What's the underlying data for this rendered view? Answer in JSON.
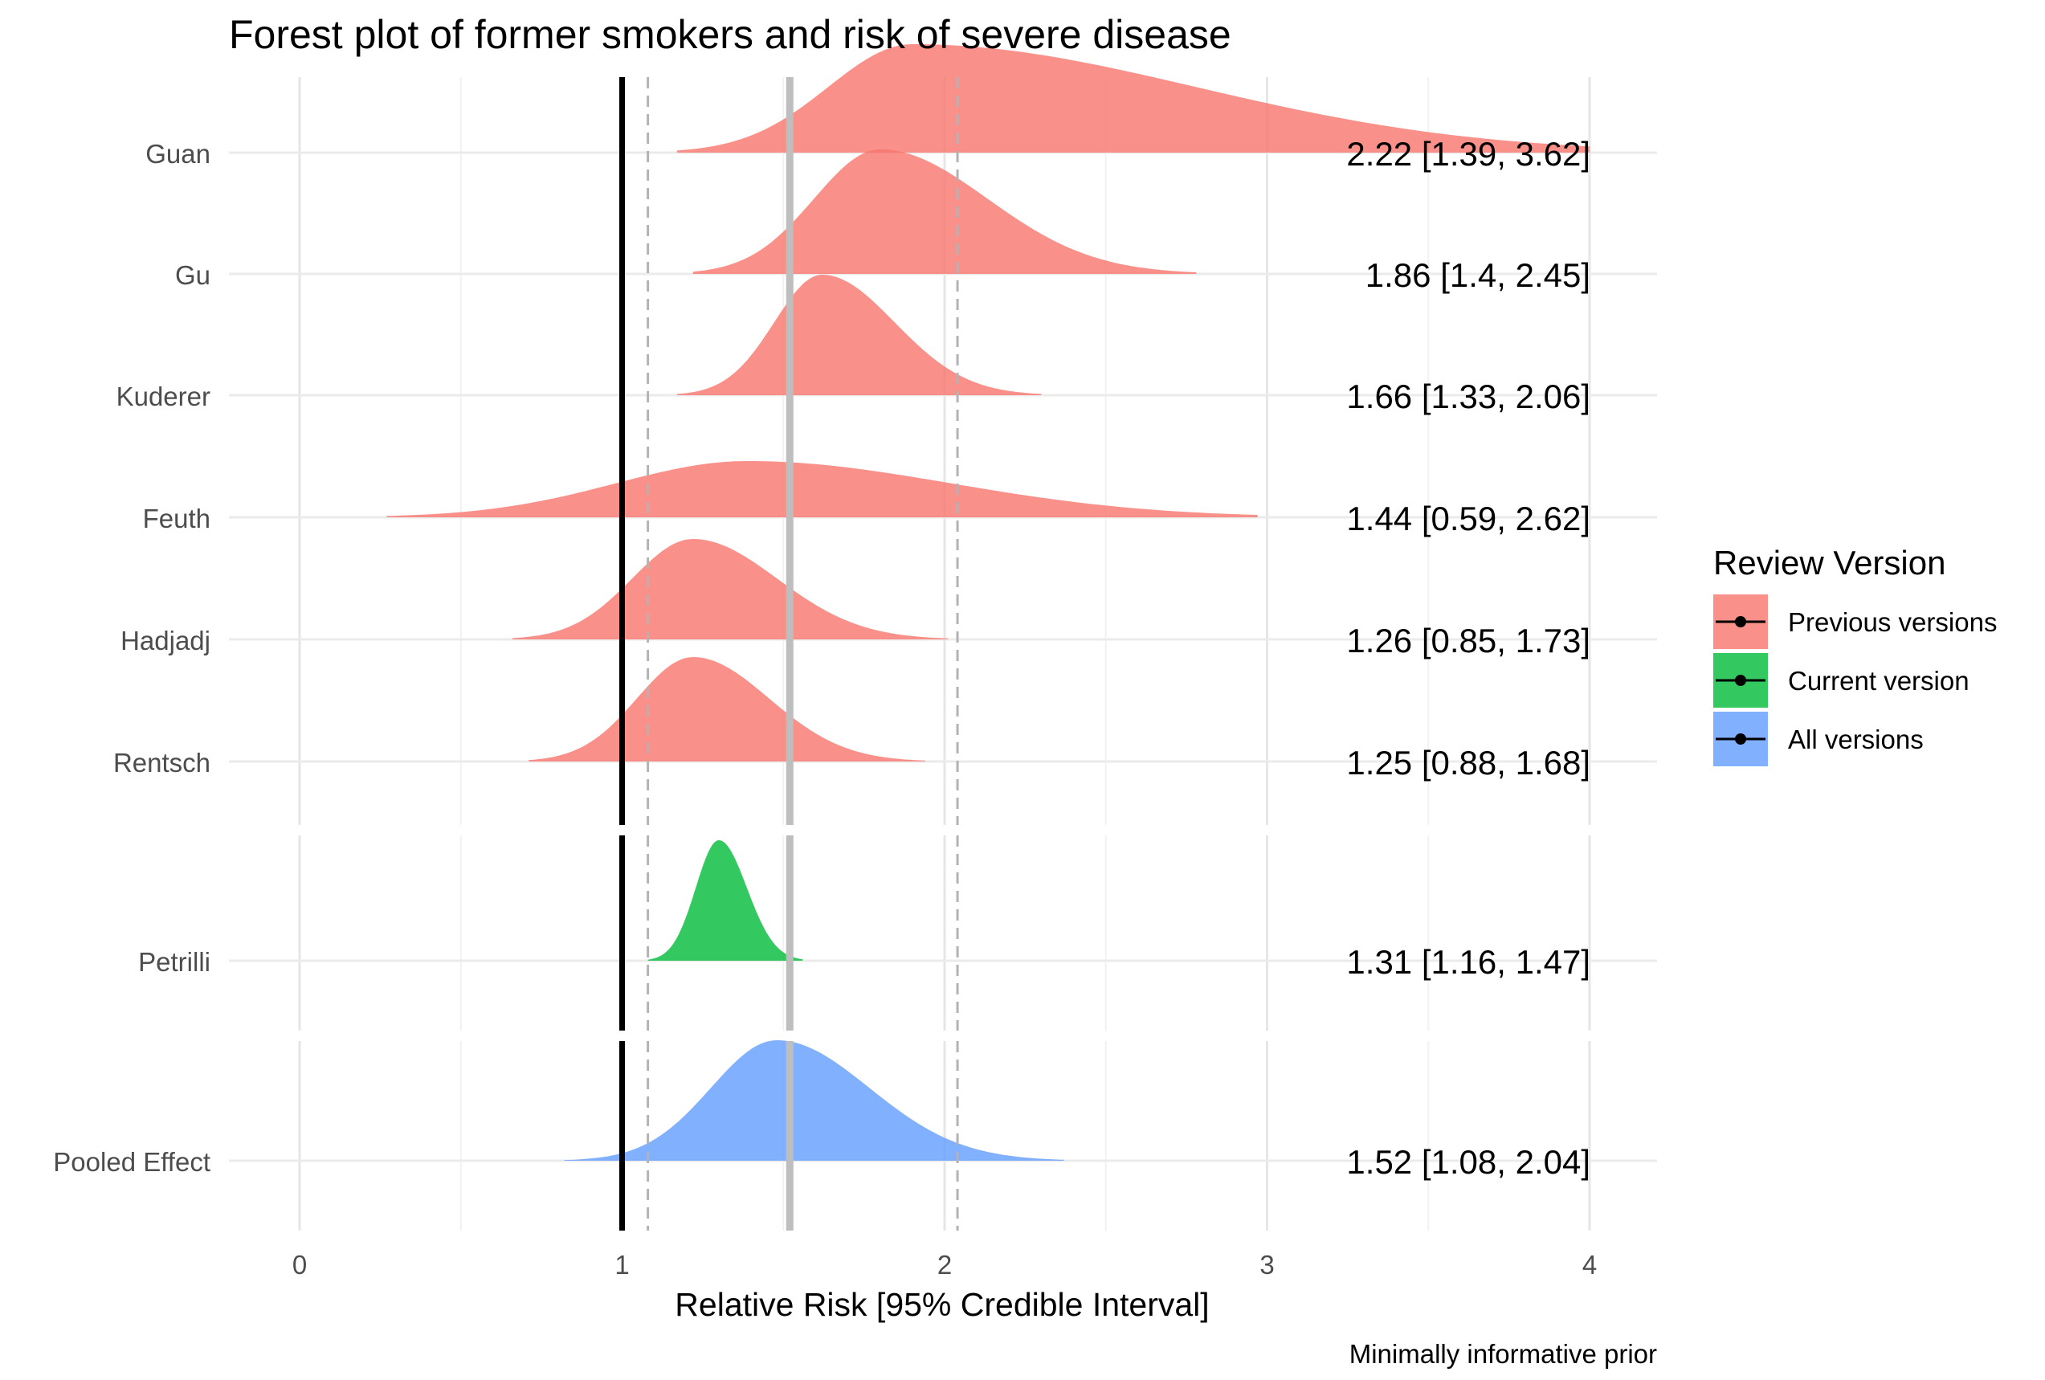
{
  "chart_data": {
    "type": "ridgeline-forest",
    "title": "Forest plot of former smokers and risk of severe disease",
    "xlabel": "Relative Risk [95% Credible Interval]",
    "caption": "Minimally informative prior",
    "xlim": [
      -0.2,
      4.2
    ],
    "x_ticks": [
      0,
      1,
      2,
      3,
      4
    ],
    "x_tick_labels": [
      "0",
      "1",
      "2",
      "3",
      "4"
    ],
    "grid": true,
    "legend": {
      "title": "Review Version",
      "placement": "right",
      "entries": [
        {
          "label": "Previous versions",
          "color": "#F8766D"
        },
        {
          "label": "Current version",
          "color": "#00BA38"
        },
        {
          "label": "All versions",
          "color": "#619CFF"
        }
      ]
    },
    "reference_lines": {
      "null_effect": 1,
      "pooled_estimate": 1.52,
      "pooled_interval": [
        1.08,
        2.04
      ]
    },
    "groups": [
      "Previous versions",
      "Current version",
      "All versions"
    ],
    "studies": [
      {
        "name": "Guan",
        "group": "Previous versions",
        "estimate": 2.22,
        "lower": 1.39,
        "upper": 3.62,
        "label": "2.22 [1.39, 3.62]",
        "density_range": [
          1.17,
          4.0
        ],
        "density_mode": 1.9
      },
      {
        "name": "Gu",
        "group": "Previous versions",
        "estimate": 1.86,
        "lower": 1.4,
        "upper": 2.45,
        "label": "1.86 [1.4, 2.45]",
        "density_range": [
          1.22,
          2.78
        ],
        "density_mode": 1.8
      },
      {
        "name": "Kuderer",
        "group": "Previous versions",
        "estimate": 1.66,
        "lower": 1.33,
        "upper": 2.06,
        "label": "1.66 [1.33, 2.06]",
        "density_range": [
          1.17,
          2.3
        ],
        "density_mode": 1.62
      },
      {
        "name": "Feuth",
        "group": "Previous versions",
        "estimate": 1.44,
        "lower": 0.59,
        "upper": 2.62,
        "label": "1.44 [0.59, 2.62]",
        "density_range": [
          0.27,
          2.97
        ],
        "density_mode": 1.39
      },
      {
        "name": "Hadjadj",
        "group": "Previous versions",
        "estimate": 1.26,
        "lower": 0.85,
        "upper": 1.73,
        "label": "1.26 [0.85, 1.73]",
        "density_range": [
          0.66,
          2.01
        ],
        "density_mode": 1.22
      },
      {
        "name": "Rentsch",
        "group": "Previous versions",
        "estimate": 1.25,
        "lower": 0.88,
        "upper": 1.68,
        "label": "1.25 [0.88, 1.68]",
        "density_range": [
          0.71,
          1.94
        ],
        "density_mode": 1.22
      },
      {
        "name": "Petrilli",
        "group": "Current version",
        "estimate": 1.31,
        "lower": 1.16,
        "upper": 1.47,
        "label": "1.31 [1.16, 1.47]",
        "density_range": [
          1.08,
          1.56
        ],
        "density_mode": 1.3
      },
      {
        "name": "Pooled Effect",
        "group": "All versions",
        "estimate": 1.52,
        "lower": 1.08,
        "upper": 2.04,
        "label": "1.52 [1.08, 2.04]",
        "density_range": [
          0.82,
          2.37
        ],
        "density_mode": 1.48
      }
    ]
  }
}
